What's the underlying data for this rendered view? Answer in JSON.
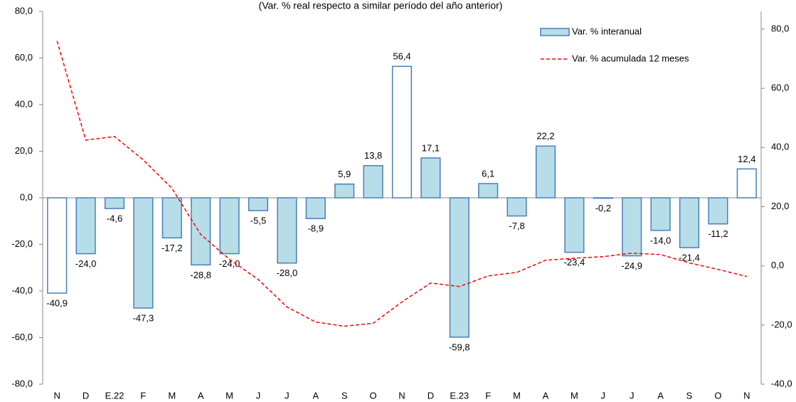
{
  "chart_data": {
    "type": "bar_line",
    "subtitle": "(Var. % real respecto a similar período del año anterior)",
    "categories": [
      "N",
      "D",
      "E.22",
      "F",
      "M",
      "A",
      "M",
      "J",
      "J",
      "A",
      "S",
      "O",
      "N",
      "D",
      "E.23",
      "F",
      "M",
      "A",
      "M",
      "J",
      "J",
      "A",
      "S",
      "O",
      "N"
    ],
    "series": [
      {
        "name": "Var. % interanual",
        "type": "bar",
        "color": "#b7dde8",
        "border": "#4a7ebb",
        "values": [
          -40.9,
          -24.0,
          -4.6,
          -47.3,
          -17.2,
          -28.8,
          -24.0,
          -5.5,
          -28.0,
          -8.9,
          5.9,
          13.8,
          56.4,
          17.1,
          -59.8,
          6.1,
          -7.8,
          22.2,
          -23.4,
          -0.2,
          -24.9,
          -14.0,
          -21.4,
          -11.2,
          12.4
        ],
        "value_labels": [
          "-40,9",
          "-24,0",
          "-4,6",
          "-47,3",
          "-17,2",
          "-28,8",
          "-24,0",
          "-5,5",
          "-28,0",
          "-8,9",
          "5,9",
          "13,8",
          "56,4",
          "17,1",
          "-59,8",
          "6,1",
          "-7,8",
          "22,2",
          "-23,4",
          "-0,2",
          "-24,9",
          "-14,0",
          "-21,4",
          "-11,2",
          "12,4"
        ],
        "colors": [
          "#ffffff",
          "#b7dde8",
          "#b7dde8",
          "#b7dde8",
          "#b7dde8",
          "#b7dde8",
          "#b7dde8",
          "#b7dde8",
          "#b7dde8",
          "#b7dde8",
          "#b7dde8",
          "#b7dde8",
          "#ffffff",
          "#b7dde8",
          "#b7dde8",
          "#b7dde8",
          "#b7dde8",
          "#b7dde8",
          "#b7dde8",
          "#b7dde8",
          "#b7dde8",
          "#b7dde8",
          "#b7dde8",
          "#b7dde8",
          "#ffffff"
        ]
      },
      {
        "name": "Var. % acumulada 12 meses",
        "type": "line",
        "axis": "y2",
        "color": "#ff0000",
        "values": [
          76,
          42.5,
          43.7,
          35.8,
          26.2,
          10.6,
          2.2,
          -4.6,
          -13.9,
          -19,
          -20.4,
          -19.4,
          -12.2,
          -5.8,
          -7,
          -3.4,
          -2.2,
          1.9,
          2.6,
          3.1,
          4.3,
          3.8,
          1,
          -1.2,
          -3.6
        ]
      }
    ],
    "ylim": [
      -80,
      80
    ],
    "yticks": [
      {
        "value": -80,
        "label": "-80,0"
      },
      {
        "value": -60,
        "label": "-60,0"
      },
      {
        "value": -40,
        "label": "-40,0"
      },
      {
        "value": -20,
        "label": "-20,0"
      },
      {
        "value": 0,
        "label": "0,0"
      },
      {
        "value": 20,
        "label": "20,0"
      },
      {
        "value": 40,
        "label": "40,0"
      },
      {
        "value": 60,
        "label": "60,0"
      },
      {
        "value": 80,
        "label": "80,0"
      }
    ],
    "y2lim": [
      -40,
      86
    ],
    "y2ticks": [
      {
        "value": -40,
        "label": "-40,0"
      },
      {
        "value": -20,
        "label": "-20,0"
      },
      {
        "value": 0,
        "label": "0,0"
      },
      {
        "value": 20,
        "label": "20,0"
      },
      {
        "value": 40,
        "label": "40,0"
      },
      {
        "value": 60,
        "label": "60,0"
      },
      {
        "value": 80,
        "label": "80,0"
      }
    ],
    "legend": "top-right"
  }
}
